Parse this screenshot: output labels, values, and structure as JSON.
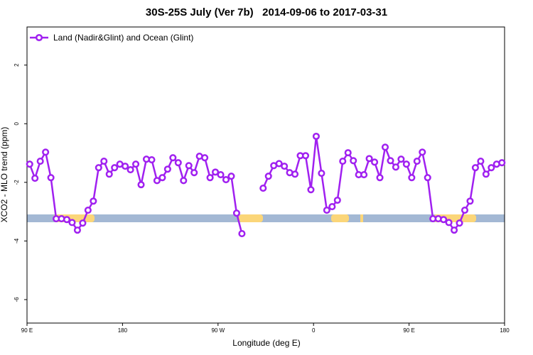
{
  "chart_data": {
    "type": "line",
    "title": "30S-25S July (Ver 7b)   2014-09-06 to 2017-03-31",
    "x_label": "Longitude (deg E)",
    "y_label": "XCO2 - MLO trend (ppm)",
    "x": [
      92.5,
      97.5,
      102.5,
      107.5,
      112.5,
      117.5,
      122.5,
      127.5,
      132.5,
      137.5,
      142.5,
      147.5,
      152.5,
      157.5,
      162.5,
      167.5,
      172.5,
      177.5,
      182.5,
      187.5,
      192.5,
      197.5,
      202.5,
      207.5,
      212.5,
      217.5,
      222.5,
      227.5,
      232.5,
      237.5,
      242.5,
      247.5,
      252.5,
      257.5,
      262.5,
      267.5,
      272.5,
      277.5,
      282.5,
      287.5,
      292.5,
      297.5,
      302.5,
      307.5,
      312.5,
      317.5,
      322.5,
      327.5,
      332.5,
      337.5,
      342.5,
      347.5,
      352.5,
      357.5,
      362.5,
      367.5,
      372.5,
      377.5,
      382.5,
      387.5,
      392.5,
      397.5,
      402.5,
      407.5,
      412.5,
      417.5,
      422.5,
      427.5,
      432.5,
      437.5,
      442.5,
      447.5,
      452.5,
      457.5,
      462.5,
      467.5,
      472.5,
      477.5,
      482.5,
      487.5,
      492.5,
      497.5,
      502.5,
      507.5,
      512.5,
      517.5,
      522.5,
      527.5,
      532.5,
      537.5
    ],
    "series": [
      {
        "name": "Land (Nadir&Glint) and Ocean (Glint)",
        "color": "#a020f0",
        "values": [
          -1.38,
          -1.86,
          -1.28,
          -0.97,
          -1.84,
          -3.24,
          -3.24,
          -3.27,
          -3.37,
          -3.63,
          -3.39,
          -2.95,
          -2.64,
          -1.5,
          -1.28,
          -1.72,
          -1.5,
          -1.38,
          -1.45,
          -1.57,
          -1.38,
          -2.08,
          -1.21,
          -1.23,
          -1.94,
          -1.84,
          -1.55,
          -1.16,
          -1.33,
          -1.94,
          -1.43,
          -1.67,
          -1.11,
          -1.16,
          -1.84,
          -1.65,
          -1.74,
          -1.91,
          -1.79,
          -3.05,
          -3.75,
          null,
          null,
          null,
          -2.2,
          -1.79,
          -1.43,
          -1.36,
          -1.45,
          -1.67,
          -1.72,
          -1.09,
          -1.09,
          -2.25,
          -0.43,
          -1.69,
          -2.95,
          -2.83,
          -2.61,
          -1.28,
          -0.99,
          -1.26,
          -1.74,
          -1.74,
          -1.19,
          -1.31,
          -1.84,
          -0.8,
          -1.26,
          -1.48,
          -1.21,
          -1.38,
          -1.84,
          -1.28,
          -0.97,
          -1.84,
          -3.24,
          -3.24,
          -3.27,
          -3.37,
          -3.63,
          -3.39,
          -2.95,
          -2.64,
          -1.5,
          -1.28,
          -1.72,
          -1.5,
          -1.38,
          -1.33
        ]
      }
    ],
    "xlim": [
      90,
      540
    ],
    "xticks": [
      {
        "value": 90,
        "label": "90 E"
      },
      180,
      {
        "value": 270,
        "label": "90 W"
      },
      {
        "value": 360,
        "label": "0"
      },
      {
        "value": 450,
        "label": "90 E"
      },
      {
        "value": 540,
        "label": "180"
      }
    ],
    "ylim": [
      -6.8,
      3.3
    ],
    "yticks": [
      -6,
      -4,
      -2,
      0,
      2
    ],
    "legend": "top-left"
  }
}
